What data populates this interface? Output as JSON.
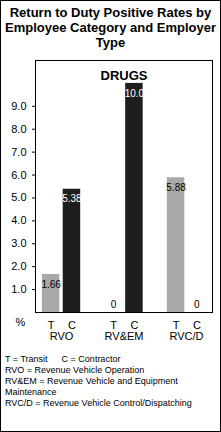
{
  "chart_data": {
    "type": "bar",
    "title": "Return to Duty Positive Rates by Employee Category and Employer Type",
    "subtitle": "DRUGS",
    "ylabel": "%",
    "categories": [
      "RVO",
      "RV&EM",
      "RVC/D"
    ],
    "series": [
      {
        "name": "T",
        "color": "#a8a8a8",
        "values": [
          1.66,
          0,
          5.88
        ],
        "value_labels": [
          "1.66",
          "0",
          "5.88"
        ]
      },
      {
        "name": "C",
        "color": "#1e1e1e",
        "values": [
          5.38,
          10,
          0
        ],
        "value_labels": [
          "5.38",
          "10.0",
          "0"
        ]
      }
    ],
    "ylim": [
      0,
      11
    ],
    "yticks": [
      {
        "value": 1,
        "label": "1.0"
      },
      {
        "value": 2,
        "label": "2.0"
      },
      {
        "value": 3,
        "label": "3.0"
      },
      {
        "value": 4,
        "label": "4.0"
      },
      {
        "value": 5,
        "label": "5.0"
      },
      {
        "value": 6,
        "label": "6.0"
      },
      {
        "value": 7,
        "label": "7.0"
      },
      {
        "value": 8,
        "label": "8.0"
      },
      {
        "value": 9,
        "label": "9.0"
      }
    ],
    "grid": false,
    "data_labels": true,
    "annotations": [
      "T = Transit",
      "C = Contractor",
      "RVO = Revenue Vehicle Operation",
      "RV&EM = Revenue Vehicle and Equipment Maintenance",
      "RVC/D = Revenue Vehicle Control/Dispatching"
    ]
  }
}
